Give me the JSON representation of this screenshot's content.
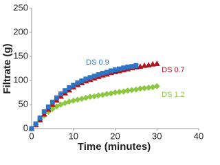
{
  "chart_data": {
    "type": "scatter",
    "x_label": "Time (minutes)",
    "y_label": "Filtrate (g)",
    "x": [
      0,
      1,
      2,
      3,
      4,
      5,
      6,
      7,
      8,
      9,
      10,
      11,
      12,
      13,
      14,
      15,
      16,
      17,
      18,
      19,
      20,
      21,
      22,
      23,
      24,
      25,
      26,
      27,
      28,
      29,
      30
    ],
    "series": [
      {
        "name": "DS 0.9",
        "color": "#2e75c5",
        "marker": "square",
        "values": [
          0,
          10,
          22,
          35,
          45,
          55,
          64,
          72,
          79,
          85,
          90,
          95,
          99,
          103,
          106,
          109,
          112,
          115,
          117,
          120,
          122,
          124,
          126,
          128,
          129,
          131,
          null,
          null,
          null,
          null,
          null
        ]
      },
      {
        "name": "DS 0.7",
        "color": "#b0141c",
        "marker": "triangle",
        "values": [
          0,
          8,
          18,
          30,
          40,
          50,
          59,
          67,
          74,
          80,
          86,
          91,
          95,
          99,
          102,
          105,
          108,
          111,
          113,
          116,
          118,
          120,
          122,
          124,
          126,
          128,
          129,
          131,
          132,
          134,
          135
        ]
      },
      {
        "name": "DS 1.2",
        "color": "#8dc63f",
        "marker": "diamond",
        "values": [
          0,
          8,
          18,
          27,
          35,
          41,
          46,
          50,
          53,
          56,
          58,
          60,
          62,
          64,
          66,
          67,
          69,
          70,
          72,
          73,
          75,
          76,
          77,
          79,
          80,
          81,
          83,
          84,
          85,
          86,
          88
        ]
      }
    ],
    "xlim": [
      0,
      40
    ],
    "xticks": [
      0,
      10,
      20,
      30,
      40
    ],
    "ylim": [
      0,
      250
    ],
    "yticks": [
      0,
      50,
      100,
      150,
      200,
      250
    ],
    "grid": false
  }
}
